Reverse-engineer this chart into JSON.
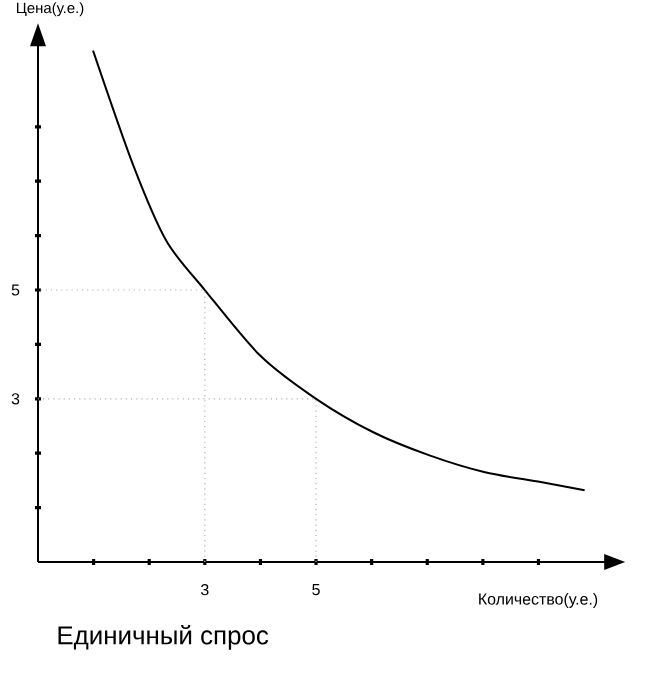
{
  "chart_data": {
    "type": "line",
    "title": "Единичный спрос",
    "xlabel": "Количество(у.е.)",
    "ylabel": "Цена(у.е.)",
    "xlim": [
      0,
      10.2
    ],
    "ylim": [
      0,
      9.5
    ],
    "xticks": [
      {
        "value": 1,
        "label": null
      },
      {
        "value": 2,
        "label": null
      },
      3,
      {
        "value": 4,
        "label": null
      },
      5,
      {
        "value": 6,
        "label": null
      },
      {
        "value": 7,
        "label": null
      },
      {
        "value": 8,
        "label": null
      },
      {
        "value": 9,
        "label": null
      }
    ],
    "yticks": [
      {
        "value": 1,
        "label": null
      },
      {
        "value": 2,
        "label": null
      },
      3,
      {
        "value": 4,
        "label": null
      },
      5,
      {
        "value": 6,
        "label": null
      },
      {
        "value": 7,
        "label": null
      },
      {
        "value": 8,
        "label": null
      }
    ],
    "grid": false,
    "series": [
      {
        "color": "#000000",
        "x": [
          0.99,
          1.71,
          2.31,
          3,
          3.99,
          5,
          6.02,
          7.04,
          8.04,
          9.04,
          9.83
        ],
        "values": [
          9.4,
          7.3,
          5.9,
          5,
          3.8,
          3,
          2.39,
          1.96,
          1.65,
          1.47,
          1.32
        ]
      },
      {
        "color": "#b0b0b0",
        "line_style": "dotted",
        "x": [
          3,
          3,
          0
        ],
        "values": [
          0,
          5,
          5
        ]
      },
      {
        "color": "#b0b0b0",
        "line_style": "dotted",
        "x": [
          5,
          5,
          0
        ],
        "values": [
          0,
          3,
          3
        ]
      }
    ]
  }
}
